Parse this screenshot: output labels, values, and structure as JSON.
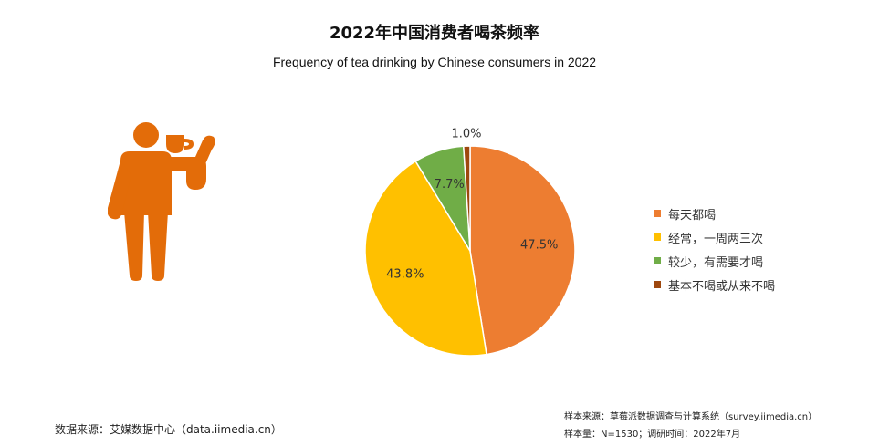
{
  "colors": {
    "daily": "#ED7D31",
    "often": "#FFC000",
    "rarely": "#70AD47",
    "never": "#9E480E",
    "person": "#E36C09"
  },
  "icons": {
    "person": "person-drinking-tea-icon"
  },
  "chart_data": {
    "type": "pie",
    "title": "2022年中国消费者喝茶频率",
    "subtitle": "Frequency of tea drinking by Chinese consumers in 2022",
    "slices": [
      {
        "label": "每天都喝",
        "value": 47.5,
        "display": "47.5%"
      },
      {
        "label": "经常，一周两三次",
        "value": 43.8,
        "display": "43.8%"
      },
      {
        "label": "较少，有需要才喝",
        "value": 7.7,
        "display": "7.7%"
      },
      {
        "label": "基本不喝或从来不喝",
        "value": 1.0,
        "display": "1.0%"
      }
    ],
    "legend_position": "right"
  },
  "footer": {
    "data_source": "数据来源：艾媒数据中心（data.iimedia.cn）",
    "sample_source": "样本来源：草莓派数据调查与计算系统（survey.iimedia.cn）",
    "sample_info": "样本量：N=1530；调研时间：2022年7月"
  }
}
